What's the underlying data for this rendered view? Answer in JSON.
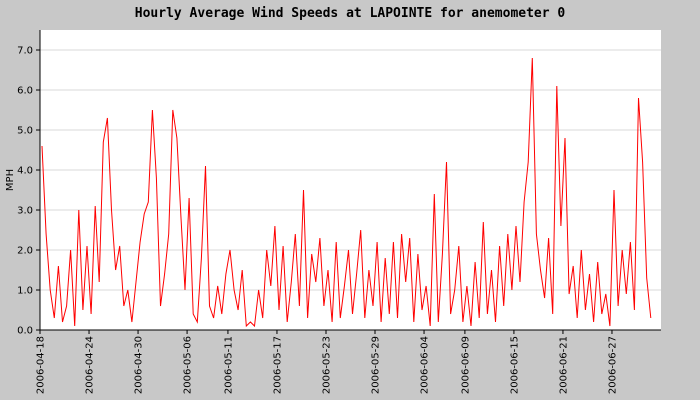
{
  "chart_data": {
    "type": "line",
    "title": "Hourly Average Wind Speeds at LAPOINTE for anemometer 0",
    "xlabel": "",
    "ylabel": "MPH",
    "ylim": [
      0,
      7.5
    ],
    "yticks": [
      "0.0",
      "1.0",
      "2.0",
      "3.0",
      "4.0",
      "5.0",
      "6.0",
      "7.0"
    ],
    "xlim": [
      "2006-04-18",
      "2006-07-03"
    ],
    "xticks": [
      "2006-04-18",
      "2006-04-24",
      "2006-04-30",
      "2006-05-06",
      "2006-05-11",
      "2006-05-17",
      "2006-05-23",
      "2006-05-29",
      "2006-06-04",
      "2006-06-09",
      "2006-06-15",
      "2006-06-21",
      "2006-06-27"
    ],
    "grid": true,
    "series_color": "#ff0000",
    "series": [
      {
        "values_desc": "",
        "points": [
          [
            "2006-04-18",
            4.6
          ],
          [
            "2006-04-18",
            2.4
          ],
          [
            "2006-04-19",
            1.0
          ],
          [
            "2006-04-19",
            0.3
          ],
          [
            "2006-04-20",
            1.6
          ],
          [
            "2006-04-20",
            0.2
          ],
          [
            "2006-04-21",
            0.6
          ],
          [
            "2006-04-21",
            2.0
          ],
          [
            "2006-04-22",
            0.1
          ],
          [
            "2006-04-22",
            3.0
          ],
          [
            "2006-04-23",
            0.5
          ],
          [
            "2006-04-23",
            2.1
          ],
          [
            "2006-04-24",
            0.4
          ],
          [
            "2006-04-24",
            3.1
          ],
          [
            "2006-04-25",
            1.2
          ],
          [
            "2006-04-25",
            4.7
          ],
          [
            "2006-04-26",
            5.3
          ],
          [
            "2006-04-26",
            3.0
          ],
          [
            "2006-04-27",
            1.5
          ],
          [
            "2006-04-27",
            2.1
          ],
          [
            "2006-04-28",
            0.6
          ],
          [
            "2006-04-28",
            1.0
          ],
          [
            "2006-04-29",
            0.2
          ],
          [
            "2006-04-29",
            1.2
          ],
          [
            "2006-04-30",
            2.2
          ],
          [
            "2006-04-30",
            2.9
          ],
          [
            "2006-05-01",
            3.2
          ],
          [
            "2006-05-01",
            5.5
          ],
          [
            "2006-05-02",
            3.8
          ],
          [
            "2006-05-02",
            0.6
          ],
          [
            "2006-05-03",
            1.4
          ],
          [
            "2006-05-03",
            2.4
          ],
          [
            "2006-05-04",
            5.5
          ],
          [
            "2006-05-04",
            4.8
          ],
          [
            "2006-05-05",
            2.8
          ],
          [
            "2006-05-05",
            1.0
          ],
          [
            "2006-05-06",
            3.3
          ],
          [
            "2006-05-06",
            0.4
          ],
          [
            "2006-05-07",
            0.2
          ],
          [
            "2006-05-07",
            1.8
          ],
          [
            "2006-05-08",
            4.1
          ],
          [
            "2006-05-08",
            0.6
          ],
          [
            "2006-05-09",
            0.3
          ],
          [
            "2006-05-09",
            1.1
          ],
          [
            "2006-05-10",
            0.4
          ],
          [
            "2006-05-10",
            1.4
          ],
          [
            "2006-05-11",
            2.0
          ],
          [
            "2006-05-11",
            1.0
          ],
          [
            "2006-05-12",
            0.5
          ],
          [
            "2006-05-12",
            1.5
          ],
          [
            "2006-05-13",
            0.1
          ],
          [
            "2006-05-13",
            0.2
          ],
          [
            "2006-05-14",
            0.1
          ],
          [
            "2006-05-14",
            1.0
          ],
          [
            "2006-05-15",
            0.3
          ],
          [
            "2006-05-15",
            2.0
          ],
          [
            "2006-05-16",
            1.1
          ],
          [
            "2006-05-16",
            2.6
          ],
          [
            "2006-05-17",
            0.5
          ],
          [
            "2006-05-17",
            2.1
          ],
          [
            "2006-05-18",
            0.2
          ],
          [
            "2006-05-18",
            1.2
          ],
          [
            "2006-05-19",
            2.4
          ],
          [
            "2006-05-19",
            0.6
          ],
          [
            "2006-05-20",
            3.5
          ],
          [
            "2006-05-20",
            0.3
          ],
          [
            "2006-05-21",
            1.9
          ],
          [
            "2006-05-21",
            1.2
          ],
          [
            "2006-05-22",
            2.3
          ],
          [
            "2006-05-22",
            0.6
          ],
          [
            "2006-05-23",
            1.5
          ],
          [
            "2006-05-23",
            0.2
          ],
          [
            "2006-05-24",
            2.2
          ],
          [
            "2006-05-24",
            0.3
          ],
          [
            "2006-05-25",
            1.1
          ],
          [
            "2006-05-25",
            2.0
          ],
          [
            "2006-05-26",
            0.4
          ],
          [
            "2006-05-26",
            1.4
          ],
          [
            "2006-05-27",
            2.5
          ],
          [
            "2006-05-27",
            0.3
          ],
          [
            "2006-05-28",
            1.5
          ],
          [
            "2006-05-28",
            0.6
          ],
          [
            "2006-05-29",
            2.2
          ],
          [
            "2006-05-29",
            0.2
          ],
          [
            "2006-05-30",
            1.8
          ],
          [
            "2006-05-30",
            0.4
          ],
          [
            "2006-05-31",
            2.2
          ],
          [
            "2006-05-31",
            0.3
          ],
          [
            "2006-06-01",
            2.4
          ],
          [
            "2006-06-01",
            1.2
          ],
          [
            "2006-06-02",
            2.3
          ],
          [
            "2006-06-02",
            0.2
          ],
          [
            "2006-06-03",
            1.9
          ],
          [
            "2006-06-03",
            0.5
          ],
          [
            "2006-06-04",
            1.1
          ],
          [
            "2006-06-04",
            0.1
          ],
          [
            "2006-06-05",
            3.4
          ],
          [
            "2006-06-05",
            0.2
          ],
          [
            "2006-06-06",
            1.9
          ],
          [
            "2006-06-06",
            4.2
          ],
          [
            "2006-06-07",
            0.4
          ],
          [
            "2006-06-07",
            1.0
          ],
          [
            "2006-06-08",
            2.1
          ],
          [
            "2006-06-08",
            0.2
          ],
          [
            "2006-06-09",
            1.1
          ],
          [
            "2006-06-09",
            0.1
          ],
          [
            "2006-06-10",
            1.7
          ],
          [
            "2006-06-10",
            0.3
          ],
          [
            "2006-06-11",
            2.7
          ],
          [
            "2006-06-11",
            0.4
          ],
          [
            "2006-06-12",
            1.5
          ],
          [
            "2006-06-12",
            0.2
          ],
          [
            "2006-06-13",
            2.1
          ],
          [
            "2006-06-13",
            0.6
          ],
          [
            "2006-06-14",
            2.4
          ],
          [
            "2006-06-14",
            1.0
          ],
          [
            "2006-06-15",
            2.6
          ],
          [
            "2006-06-15",
            1.2
          ],
          [
            "2006-06-16",
            3.2
          ],
          [
            "2006-06-16",
            4.2
          ],
          [
            "2006-06-17",
            6.8
          ],
          [
            "2006-06-17",
            2.4
          ],
          [
            "2006-06-18",
            1.5
          ],
          [
            "2006-06-18",
            0.8
          ],
          [
            "2006-06-19",
            2.3
          ],
          [
            "2006-06-19",
            0.4
          ],
          [
            "2006-06-20",
            6.1
          ],
          [
            "2006-06-20",
            2.6
          ],
          [
            "2006-06-21",
            4.8
          ],
          [
            "2006-06-21",
            0.9
          ],
          [
            "2006-06-22",
            1.6
          ],
          [
            "2006-06-22",
            0.3
          ],
          [
            "2006-06-23",
            2.0
          ],
          [
            "2006-06-23",
            0.5
          ],
          [
            "2006-06-24",
            1.4
          ],
          [
            "2006-06-24",
            0.2
          ],
          [
            "2006-06-25",
            1.7
          ],
          [
            "2006-06-25",
            0.4
          ],
          [
            "2006-06-26",
            0.9
          ],
          [
            "2006-06-26",
            0.1
          ],
          [
            "2006-06-27",
            3.5
          ],
          [
            "2006-06-27",
            0.6
          ],
          [
            "2006-06-28",
            2.0
          ],
          [
            "2006-06-28",
            0.9
          ],
          [
            "2006-06-29",
            2.2
          ],
          [
            "2006-06-29",
            0.5
          ],
          [
            "2006-06-30",
            5.8
          ],
          [
            "2006-06-30",
            4.2
          ],
          [
            "2006-07-01",
            1.3
          ],
          [
            "2006-07-01",
            0.3
          ]
        ]
      }
    ]
  }
}
